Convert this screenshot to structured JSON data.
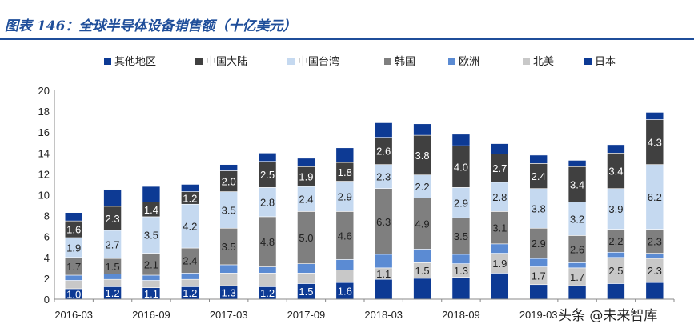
{
  "title": "图表 146：全球半导体设备销售额（十亿美元）",
  "watermark": "头条 @未来智库",
  "chart_data": {
    "type": "bar",
    "stacked": true,
    "categories": [
      "2016-03",
      "2016-06",
      "2016-09",
      "2016-12",
      "2017-03",
      "2017-06",
      "2017-09",
      "2017-12",
      "2018-03",
      "2018-06",
      "2018-09",
      "2018-12",
      "2019-03",
      "2019-06",
      "2019-09",
      "2019-12"
    ],
    "x_tick_labels": [
      "2016-03",
      "2016-09",
      "2017-03",
      "2017-09",
      "2018-03",
      "2018-09",
      "2019-03"
    ],
    "ylim": [
      0,
      20
    ],
    "yticks": [
      0,
      2,
      4,
      6,
      8,
      10,
      12,
      14,
      16,
      18,
      20
    ],
    "grid": false,
    "legend_position": "top",
    "series": [
      {
        "name": "日本",
        "color": "#0d3a94",
        "values": [
          1.0,
          1.2,
          1.1,
          1.2,
          1.3,
          1.2,
          1.5,
          1.6,
          1.9,
          2.0,
          2.1,
          2.5,
          1.4,
          1.3,
          1.5,
          1.6
        ],
        "labels": [
          "1.0",
          "1.2",
          "1.1",
          "1.2",
          "1.3",
          "1.2",
          "1.5",
          "1.6",
          "",
          "",
          "",
          "",
          "",
          "",
          "",
          ""
        ]
      },
      {
        "name": "北美",
        "color": "#c8c8c8",
        "values": [
          0.8,
          0.7,
          0.7,
          0.7,
          1.2,
          1.3,
          1.0,
          1.2,
          1.1,
          1.5,
          1.3,
          1.9,
          1.7,
          1.7,
          2.5,
          2.3
        ],
        "labels": [
          "",
          "",
          "",
          "",
          "",
          "",
          "",
          "",
          "1.1",
          "1.5",
          "1.3",
          "1.9",
          "1.7",
          "1.7",
          "2.5",
          "2.3"
        ]
      },
      {
        "name": "欧洲",
        "color": "#5b8bd3",
        "values": [
          0.5,
          0.5,
          0.5,
          0.6,
          0.8,
          0.6,
          0.9,
          1.0,
          1.3,
          1.3,
          0.9,
          0.9,
          0.8,
          0.5,
          0.5,
          0.5
        ],
        "labels": [
          "",
          "",
          "",
          "",
          "",
          "",
          "",
          "",
          "",
          "",
          "",
          "",
          "",
          "",
          "",
          ""
        ]
      },
      {
        "name": "韩国",
        "color": "#7f7f7f",
        "values": [
          1.7,
          1.5,
          2.1,
          2.4,
          3.5,
          4.8,
          5.0,
          4.6,
          6.3,
          4.9,
          3.5,
          3.1,
          2.9,
          2.6,
          2.2,
          2.3
        ],
        "labels": [
          "1.7",
          "1.5",
          "2.1",
          "2.4",
          "3.5",
          "4.8",
          "5.0",
          "4.6",
          "6.3",
          "4.9",
          "3.5",
          "3.1",
          "2.9",
          "2.6",
          "2.2",
          "2.3"
        ]
      },
      {
        "name": "中国台湾",
        "color": "#c5d9f0",
        "values": [
          1.9,
          2.7,
          3.5,
          4.2,
          3.5,
          2.8,
          2.4,
          2.9,
          2.3,
          2.2,
          2.9,
          2.8,
          3.8,
          3.2,
          3.9,
          6.2
        ],
        "labels": [
          "1.9",
          "2.7",
          "3.5",
          "4.2",
          "3.5",
          "2.8",
          "2.4",
          "2.9",
          "2.3",
          "2.2",
          "2.9",
          "2.8",
          "3.8",
          "3.2",
          "3.9",
          "6.2"
        ]
      },
      {
        "name": "中国大陆",
        "color": "#404040",
        "values": [
          1.6,
          2.3,
          1.4,
          1.2,
          2.0,
          2.5,
          1.9,
          1.8,
          2.6,
          3.8,
          4.0,
          2.7,
          2.4,
          3.4,
          3.4,
          4.3
        ],
        "labels": [
          "1.6",
          "2.3",
          "1.4",
          "1.2",
          "2.0",
          "2.5",
          "1.9",
          "1.8",
          "2.6",
          "3.8",
          "4.0",
          "2.7",
          "2.4",
          "3.4",
          "3.4",
          "4.3"
        ]
      },
      {
        "name": "其他地区",
        "color": "#0d3a94",
        "values": [
          0.8,
          1.6,
          1.5,
          0.7,
          0.6,
          0.8,
          0.8,
          1.4,
          1.4,
          1.1,
          1.1,
          1.0,
          0.8,
          0.6,
          0.8,
          0.7
        ],
        "labels": [
          "",
          "",
          "",
          "",
          "",
          "",
          "",
          "",
          "",
          "",
          "",
          "",
          "",
          "",
          "",
          ""
        ]
      }
    ],
    "legend_order": [
      "其他地区",
      "中国大陆",
      "中国台湾",
      "韩国",
      "欧洲",
      "北美",
      "日本"
    ]
  }
}
